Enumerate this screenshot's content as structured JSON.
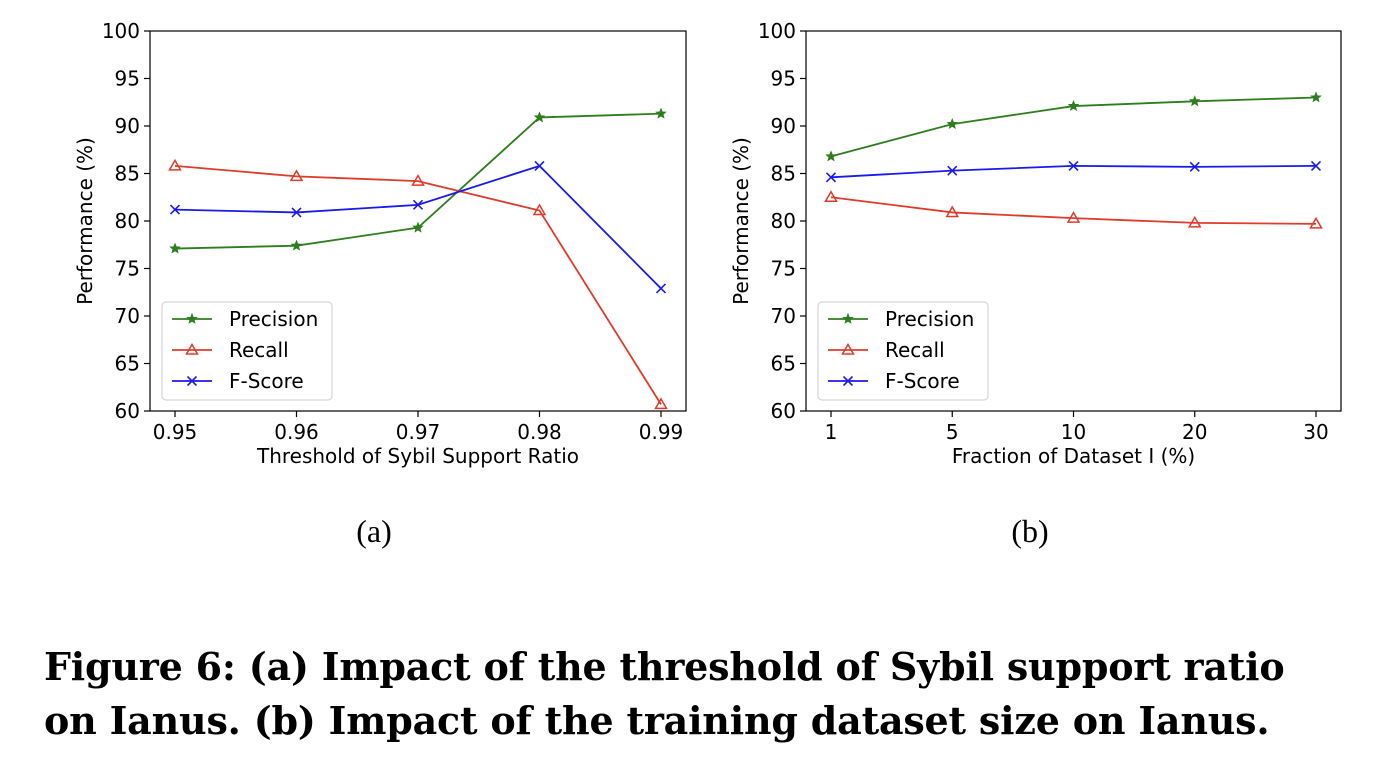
{
  "chart_data": [
    {
      "type": "line",
      "subfigure_label": "(a)",
      "xlabel": "Threshold of Sybil Support Ratio",
      "ylabel": "Performance (%)",
      "categories": [
        "0.95",
        "0.96",
        "0.97",
        "0.98",
        "0.99"
      ],
      "ylim": [
        60,
        100
      ],
      "yticks": [
        "60",
        "65",
        "70",
        "75",
        "80",
        "85",
        "90",
        "95",
        "100"
      ],
      "grid": false,
      "legend_position": "lower-left",
      "series": [
        {
          "name": "Precision",
          "color": "#2e7d1f",
          "marker": "star",
          "values": [
            77.1,
            77.4,
            79.3,
            90.9,
            91.3
          ]
        },
        {
          "name": "Recall",
          "color": "#e03a2a",
          "marker": "triangle",
          "values": [
            85.8,
            84.7,
            84.2,
            81.1,
            60.7
          ]
        },
        {
          "name": "F-Score",
          "color": "#1a1aee",
          "marker": "x",
          "values": [
            81.2,
            80.9,
            81.7,
            85.8,
            72.9
          ]
        }
      ]
    },
    {
      "type": "line",
      "subfigure_label": "(b)",
      "xlabel": "Fraction of Dataset I (%)",
      "ylabel": "Performance (%)",
      "categories": [
        "1",
        "5",
        "10",
        "20",
        "30"
      ],
      "ylim": [
        60,
        100
      ],
      "yticks": [
        "60",
        "65",
        "70",
        "75",
        "80",
        "85",
        "90",
        "95",
        "100"
      ],
      "grid": false,
      "legend_position": "lower-left",
      "series": [
        {
          "name": "Precision",
          "color": "#2e7d1f",
          "marker": "star",
          "values": [
            86.8,
            90.2,
            92.1,
            92.6,
            93.0
          ]
        },
        {
          "name": "Recall",
          "color": "#e03a2a",
          "marker": "triangle",
          "values": [
            82.5,
            80.9,
            80.3,
            79.8,
            79.7
          ]
        },
        {
          "name": "F-Score",
          "color": "#1a1aee",
          "marker": "x",
          "values": [
            84.6,
            85.3,
            85.8,
            85.7,
            85.8
          ]
        }
      ]
    }
  ],
  "caption": {
    "line1": "Figure 6: (a) Impact of the threshold of Sybil support ratio",
    "line2": "on Ianus. (b) Impact of the training dataset size on Ianus."
  }
}
